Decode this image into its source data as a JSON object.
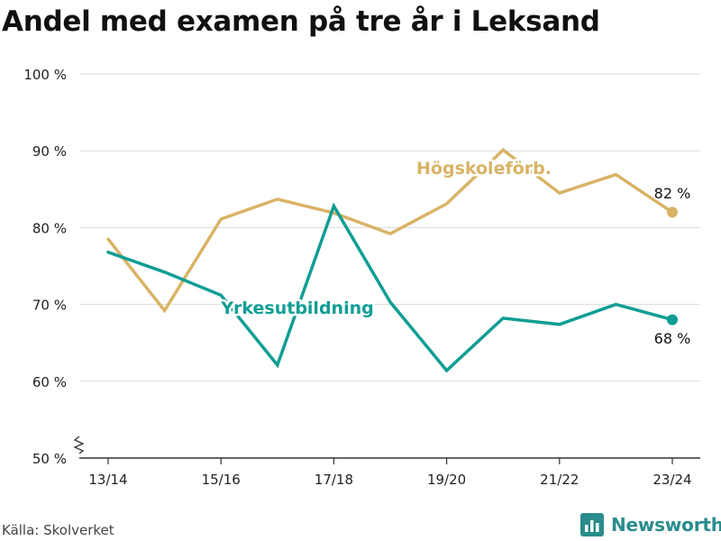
{
  "title": "Andel med examen på tre år i Leksand",
  "source": "Källa: Skolverket",
  "brand": {
    "name": "Newsworthy",
    "icon": "bar-chart-icon"
  },
  "colors": {
    "hogskoleforb": "#d9b366",
    "yrkesutbildning": "#0f9e94",
    "grid": "#d9d9d9",
    "axis": "#333333",
    "text": "#222222",
    "brand": "#2a8c8c"
  },
  "chart_data": {
    "type": "line",
    "title": "Andel med examen på tre år i Leksand",
    "x": [
      "13/14",
      "14/15",
      "15/16",
      "16/17",
      "17/18",
      "18/19",
      "19/20",
      "20/21",
      "21/22",
      "22/23",
      "23/24"
    ],
    "x_tick_labels": [
      "13/14",
      "15/16",
      "17/18",
      "19/20",
      "21/22",
      "23/24"
    ],
    "y_ticks": [
      50,
      60,
      70,
      80,
      90,
      100
    ],
    "y_tick_labels": [
      "50 %",
      "60 %",
      "70 %",
      "80 %",
      "90 %",
      "100 %"
    ],
    "ylim": [
      50,
      100
    ],
    "y_axis_break": true,
    "grid": true,
    "series": [
      {
        "name": "Högskoleförb.",
        "values": [
          78.5,
          69.2,
          81.1,
          83.7,
          81.9,
          79.2,
          83.1,
          90.1,
          84.5,
          86.9,
          82.0
        ],
        "end_label": "82 %"
      },
      {
        "name": "Yrkesutbildning",
        "values": [
          76.8,
          74.2,
          71.2,
          62.1,
          82.8,
          70.3,
          61.4,
          68.2,
          67.4,
          70.0,
          68.0
        ],
        "end_label": "68 %"
      }
    ]
  }
}
